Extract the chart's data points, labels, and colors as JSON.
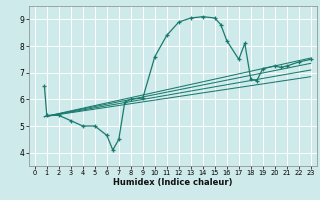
{
  "title": "",
  "xlabel": "Humidex (Indice chaleur)",
  "ylabel": "",
  "bg_color": "#ceeaea",
  "line_color": "#1a7a6e",
  "grid_color": "#ffffff",
  "xlim": [
    -0.5,
    23.5
  ],
  "ylim": [
    3.5,
    9.5
  ],
  "xticks": [
    0,
    1,
    2,
    3,
    4,
    5,
    6,
    7,
    8,
    9,
    10,
    11,
    12,
    13,
    14,
    15,
    16,
    17,
    18,
    19,
    20,
    21,
    22,
    23
  ],
  "yticks": [
    4,
    5,
    6,
    7,
    8,
    9
  ],
  "series": [
    [
      0.8,
      6.5
    ],
    [
      1.0,
      5.4
    ],
    [
      2.0,
      5.4
    ],
    [
      3.0,
      5.2
    ],
    [
      4.0,
      5.0
    ],
    [
      5.0,
      5.0
    ],
    [
      6.0,
      4.65
    ],
    [
      6.5,
      4.1
    ],
    [
      7.0,
      4.5
    ],
    [
      7.5,
      5.9
    ],
    [
      8.0,
      6.0
    ],
    [
      9.0,
      6.05
    ],
    [
      10.0,
      7.6
    ],
    [
      11.0,
      8.4
    ],
    [
      12.0,
      8.9
    ],
    [
      13.0,
      9.05
    ],
    [
      14.0,
      9.1
    ],
    [
      15.0,
      9.05
    ],
    [
      15.5,
      8.8
    ],
    [
      16.0,
      8.2
    ],
    [
      17.0,
      7.5
    ],
    [
      17.5,
      8.1
    ],
    [
      18.0,
      6.75
    ],
    [
      18.5,
      6.7
    ],
    [
      19.0,
      7.15
    ],
    [
      20.0,
      7.25
    ],
    [
      20.5,
      7.2
    ],
    [
      21.0,
      7.25
    ],
    [
      22.0,
      7.4
    ],
    [
      23.0,
      7.5
    ]
  ],
  "lines_extra": [
    [
      [
        0.8,
        23.0
      ],
      [
        5.35,
        7.55
      ]
    ],
    [
      [
        0.8,
        23.0
      ],
      [
        5.35,
        7.35
      ]
    ],
    [
      [
        0.8,
        23.0
      ],
      [
        5.35,
        7.1
      ]
    ],
    [
      [
        0.8,
        23.0
      ],
      [
        5.35,
        6.85
      ]
    ]
  ]
}
